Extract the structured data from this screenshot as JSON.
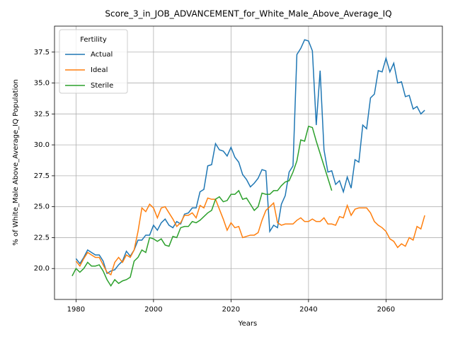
{
  "chart_data": {
    "type": "line",
    "title": "Score_3_in_JOB_ADVANCEMENT_for_White_Male_Above_Average_IQ",
    "x_label": "Years",
    "y_label": "% of White_Male Above_Average_IQ Population",
    "legend_title": "Fertility",
    "legend_position": "upper left",
    "grid": true,
    "xlim": [
      1974.45,
      2074.55
    ],
    "xticks": [
      1980,
      2000,
      2020,
      2040,
      2060
    ],
    "ylim": [
      17.5,
      39.6
    ],
    "yticks": [
      {
        "value": 20,
        "label": "20.0"
      },
      22.5,
      {
        "value": 25,
        "label": "25.0"
      },
      27.5,
      {
        "value": 30,
        "label": "30.0"
      },
      32.5,
      {
        "value": 35,
        "label": "35.0"
      },
      37.5
    ],
    "x": [
      1979,
      1980,
      1981,
      1982,
      1983,
      1984,
      1985,
      1986,
      1987,
      1988,
      1989,
      1990,
      1991,
      1992,
      1993,
      1994,
      1995,
      1996,
      1997,
      1998,
      1999,
      2000,
      2001,
      2002,
      2003,
      2004,
      2005,
      2006,
      2007,
      2008,
      2009,
      2010,
      2011,
      2012,
      2013,
      2014,
      2015,
      2016,
      2017,
      2018,
      2019,
      2020,
      2021,
      2022,
      2023,
      2024,
      2025,
      2026,
      2027,
      2028,
      2029,
      2030,
      2031,
      2032,
      2033,
      2034,
      2035,
      2036,
      2037,
      2038,
      2039,
      2040,
      2041,
      2042,
      2043,
      2044,
      2045,
      2046,
      2047,
      2048,
      2049,
      2050,
      2051,
      2052,
      2053,
      2054,
      2055,
      2056,
      2057,
      2058,
      2059,
      2060,
      2061,
      2062,
      2063,
      2064,
      2065,
      2066,
      2067,
      2068,
      2069,
      2070
    ],
    "series": [
      {
        "name": "Actual",
        "color": "#1f77b4",
        "values": [
          null,
          20.8,
          20.4,
          20.9,
          21.5,
          21.3,
          21.1,
          21.1,
          20.6,
          19.6,
          19.8,
          19.9,
          20.3,
          20.6,
          21.4,
          21.0,
          21.5,
          22.3,
          22.3,
          22.7,
          22.7,
          23.5,
          23.1,
          23.7,
          24.0,
          23.5,
          23.3,
          23.8,
          23.6,
          24.4,
          24.5,
          24.9,
          24.9,
          26.2,
          26.4,
          28.3,
          28.4,
          30.1,
          29.6,
          29.5,
          29.1,
          29.8,
          29.0,
          28.6,
          27.6,
          27.2,
          26.6,
          26.9,
          27.3,
          28.0,
          27.9,
          23.0,
          23.5,
          23.3,
          25.2,
          25.9,
          27.8,
          28.3,
          37.3,
          37.8,
          38.5,
          38.4,
          37.6,
          31.6,
          36.0,
          29.6,
          27.8,
          27.9,
          26.8,
          27.1,
          26.2,
          27.4,
          26.5,
          28.8,
          28.6,
          31.6,
          31.3,
          33.8,
          34.1,
          36.0,
          35.9,
          37.0,
          35.9,
          36.6,
          35.0,
          35.1,
          33.9,
          34.0,
          32.9,
          33.1,
          32.5,
          32.8
        ]
      },
      {
        "name": "Ideal",
        "color": "#ff7f0e",
        "values": [
          null,
          20.6,
          20.2,
          20.8,
          21.3,
          21.1,
          20.9,
          20.9,
          20.3,
          19.7,
          19.5,
          20.5,
          20.9,
          20.5,
          21.1,
          20.9,
          21.5,
          23.0,
          24.9,
          24.6,
          25.2,
          24.9,
          24.1,
          24.9,
          25.0,
          24.5,
          24.0,
          23.4,
          23.7,
          24.3,
          24.3,
          24.5,
          24.1,
          25.1,
          24.9,
          25.7,
          25.6,
          25.6,
          24.8,
          24.0,
          23.1,
          23.7,
          23.3,
          23.4,
          22.5,
          22.6,
          22.7,
          22.7,
          22.9,
          23.9,
          24.7,
          25.0,
          25.3,
          23.7,
          23.5,
          23.6,
          23.6,
          23.6,
          23.9,
          24.1,
          23.8,
          23.8,
          24.0,
          23.8,
          23.8,
          24.1,
          23.6,
          23.6,
          23.5,
          24.2,
          24.1,
          25.1,
          24.3,
          24.8,
          24.9,
          24.9,
          24.9,
          24.5,
          23.8,
          23.5,
          23.3,
          23.0,
          22.4,
          22.2,
          21.7,
          22.0,
          21.8,
          22.5,
          22.3,
          23.4,
          23.2,
          24.3
        ]
      },
      {
        "name": "Sterile",
        "color": "#2ca02c",
        "values": [
          19.4,
          20.0,
          19.7,
          20.0,
          20.5,
          20.2,
          20.2,
          20.3,
          19.8,
          19.1,
          18.6,
          19.1,
          18.8,
          19.0,
          19.1,
          19.3,
          20.6,
          20.9,
          21.5,
          21.3,
          22.5,
          22.4,
          22.2,
          22.4,
          21.9,
          21.8,
          22.6,
          22.5,
          23.3,
          23.4,
          23.4,
          23.8,
          23.7,
          23.9,
          24.2,
          24.5,
          24.7,
          25.6,
          25.8,
          25.4,
          25.5,
          26.0,
          26.0,
          26.3,
          25.6,
          25.7,
          25.2,
          24.7,
          25.0,
          26.1,
          26.0,
          26.0,
          26.3,
          26.3,
          26.7,
          27.0,
          27.1,
          27.8,
          28.7,
          30.4,
          30.3,
          31.5,
          31.4,
          30.3,
          29.3,
          28.3,
          27.3,
          26.3,
          null,
          null,
          null,
          null,
          null,
          null,
          null,
          null,
          null,
          null,
          null,
          null,
          null,
          null,
          null,
          null,
          null,
          null,
          null,
          null,
          null,
          null,
          null,
          null
        ]
      }
    ]
  }
}
